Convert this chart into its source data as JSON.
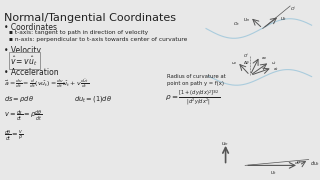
{
  "bg_color": "#e8e8e8",
  "title": "Normal/Tangential Coordinates",
  "title_fontsize": 8.0,
  "body_color": "#222222",
  "bullet1": "Coordinates",
  "sub1a": "t-axis: tangent to path in direction of velocity",
  "sub1b": "n-axis: perpendicular to t-axis towards center of curvature",
  "bullet2": "Velocity",
  "velocity_eq": "$\\hat{v} = v\\hat{u}_t$",
  "bullet3": "Acceleration",
  "acc_eq": "$\\vec{a} = \\frac{dv}{dt} = \\frac{d}{dt}(v\\hat{u}_t) = \\frac{dv}{dt}\\hat{u}_t + v\\frac{d\\hat{u}_t}{dt}$",
  "eq_ds": "$ds = \\rho d\\theta$",
  "eq_dut": "$du_t = (1)d\\theta$",
  "eq_v": "$v = \\frac{ds}{dt} = \\rho\\frac{d\\theta}{dt}$",
  "eq_dth": "$\\frac{d\\theta}{dt} = \\frac{v}{\\rho}$",
  "radius_label": "Radius of curvature at\npoint on path y = f(x)",
  "radius_eq": "$\\rho = \\frac{[1+(dy/dx)^2]^{3/2}}{|d^2y/dx^2|}$",
  "curve_color": "#aaccdd",
  "line_color": "#555555",
  "text_color": "#333333"
}
